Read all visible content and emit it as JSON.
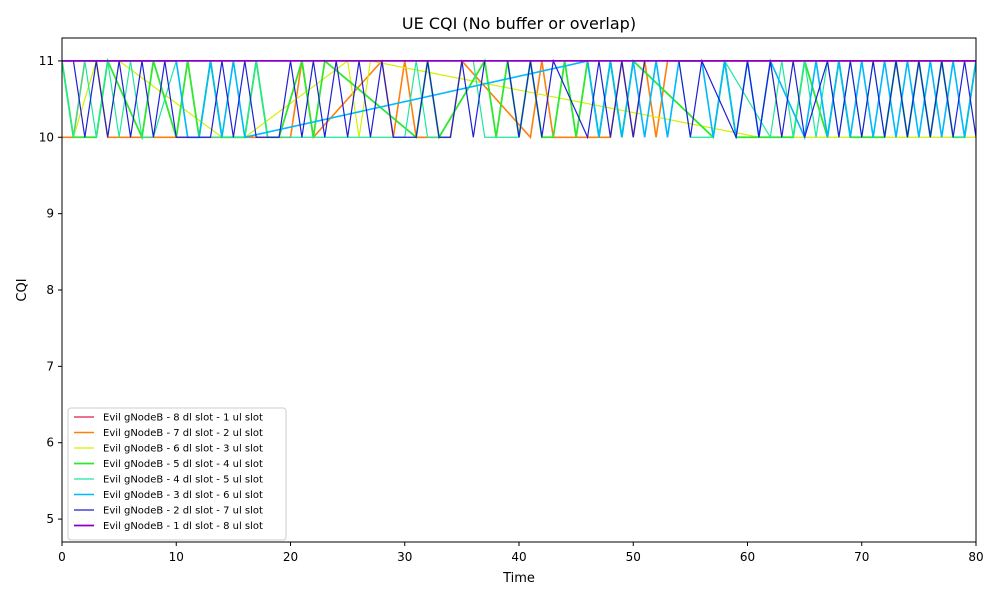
{
  "chart_data": {
    "type": "line",
    "title": "UE CQI (No buffer or overlap)",
    "xlabel": "Time",
    "ylabel": "CQI",
    "xlim": [
      0,
      80
    ],
    "ylim": [
      4.7,
      11.3
    ],
    "xticks": [
      0,
      10,
      20,
      30,
      40,
      50,
      60,
      70,
      80
    ],
    "yticks": [
      5,
      6,
      7,
      8,
      9,
      10,
      11
    ],
    "grid": false,
    "legend_position": "lower-left",
    "series": [
      {
        "name": "Evil gNodeB - 8 dl slot - 1 ul slot",
        "color": "#e6194b",
        "width": 1.2,
        "x": [
          0,
          66,
          67,
          68,
          80
        ],
        "y": [
          11,
          11,
          10,
          11,
          11
        ]
      },
      {
        "name": "Evil gNodeB - 7 dl slot - 2 ul slot",
        "color": "#ff7f0e",
        "width": 1.6,
        "x": [
          0,
          1,
          2,
          3,
          4,
          5,
          20,
          21,
          22,
          28,
          29,
          30,
          31,
          34,
          35,
          41,
          42,
          43,
          48,
          49,
          50,
          51,
          52,
          53,
          80
        ],
        "y": [
          10,
          10,
          11,
          11,
          10,
          10,
          10,
          11,
          10,
          11,
          10,
          11,
          10,
          10,
          11,
          10,
          11,
          10,
          10,
          11,
          10,
          11,
          10,
          11,
          11
        ]
      },
      {
        "name": "Evil gNodeB - 6 dl slot - 3 ul slot",
        "color": "#d4f000",
        "width": 1.2,
        "x": [
          0,
          1,
          3,
          4,
          5,
          14,
          15,
          16,
          25,
          26,
          27,
          61,
          62,
          63,
          75,
          80
        ],
        "y": [
          11,
          10,
          11,
          10,
          11,
          10,
          11,
          10,
          11,
          10,
          11,
          10,
          11,
          10,
          10,
          10
        ]
      },
      {
        "name": "Evil gNodeB - 5 dl slot - 4 ul slot",
        "color": "#2ee82e",
        "width": 1.8,
        "x": [
          0,
          1,
          3,
          4,
          7,
          8,
          10,
          11,
          12,
          13,
          14,
          16,
          17,
          18,
          19,
          21,
          22,
          23,
          31,
          32,
          33,
          37,
          38,
          39,
          40,
          41,
          42,
          43,
          44,
          45,
          46,
          47,
          48,
          49,
          50,
          57,
          58,
          59,
          60,
          64,
          65,
          67,
          68,
          69,
          72,
          73,
          74,
          75,
          76,
          77,
          78,
          79,
          80
        ],
        "y": [
          11,
          10,
          10,
          11,
          10,
          11,
          10,
          11,
          10,
          11,
          10,
          10,
          11,
          10,
          10,
          11,
          10,
          11,
          10,
          11,
          10,
          11,
          10,
          11,
          10,
          11,
          10,
          10,
          11,
          10,
          11,
          10,
          11,
          10,
          11,
          10,
          11,
          10,
          10,
          10,
          11,
          10,
          11,
          10,
          10,
          11,
          10,
          11,
          10,
          11,
          10,
          10,
          11
        ]
      },
      {
        "name": "Evil gNodeB - 4 dl slot - 5 ul slot",
        "color": "#1ee8a0",
        "width": 1.2,
        "x": [
          0,
          1,
          2,
          3,
          4,
          5,
          6,
          7,
          8,
          10,
          11,
          16,
          17,
          18,
          30,
          31,
          32,
          34,
          35,
          36,
          37,
          40,
          41,
          52,
          53,
          54,
          55,
          57,
          58,
          62,
          63,
          64,
          65,
          66,
          67,
          68,
          69,
          70,
          71,
          72,
          73,
          74,
          75,
          76,
          77,
          78,
          79,
          80
        ],
        "y": [
          11,
          10,
          11,
          10,
          11,
          10,
          11,
          10,
          10,
          11,
          10,
          10,
          11,
          10,
          10,
          11,
          10,
          10,
          11,
          11,
          10,
          10,
          11,
          11,
          10,
          11,
          10,
          10,
          11,
          10,
          11,
          10,
          11,
          10,
          11,
          10,
          11,
          10,
          11,
          10,
          11,
          10,
          11,
          10,
          11,
          10,
          10,
          11
        ]
      },
      {
        "name": "Evil gNodeB - 3 dl slot - 6 ul slot",
        "color": "#00b8ff",
        "width": 1.6,
        "x": [
          0,
          10,
          11,
          12,
          13,
          14,
          15,
          16,
          46,
          47,
          48,
          49,
          50,
          51,
          52,
          53,
          54,
          56,
          57,
          58,
          59,
          60,
          61,
          62,
          65,
          66,
          67,
          68,
          69,
          70,
          71,
          72,
          73,
          74,
          75,
          76,
          77,
          78,
          79,
          80
        ],
        "y": [
          11,
          11,
          10,
          10,
          11,
          10,
          11,
          10,
          11,
          10,
          11,
          10,
          11,
          10,
          11,
          10,
          11,
          11,
          10,
          11,
          10,
          11,
          10,
          11,
          10,
          11,
          10,
          11,
          10,
          11,
          10,
          11,
          10,
          11,
          10,
          11,
          10,
          11,
          10,
          11
        ]
      },
      {
        "name": "Evil gNodeB - 2 dl slot - 7 ul slot",
        "color": "#1f1fd6",
        "width": 1.2,
        "x": [
          0,
          1,
          2,
          3,
          4,
          5,
          6,
          7,
          8,
          9,
          10,
          13,
          14,
          15,
          16,
          17,
          19,
          20,
          21,
          22,
          23,
          24,
          25,
          26,
          27,
          28,
          29,
          31,
          32,
          33,
          34,
          35,
          36,
          37,
          39,
          40,
          41,
          42,
          43,
          46,
          47,
          48,
          49,
          50,
          51,
          54,
          55,
          56,
          59,
          60,
          61,
          62,
          63,
          64,
          65,
          67,
          68,
          69,
          70,
          71,
          72,
          73,
          74,
          75,
          76,
          77,
          78,
          79,
          80
        ],
        "y": [
          11,
          11,
          10,
          11,
          10,
          11,
          10,
          11,
          10,
          11,
          10,
          10,
          11,
          10,
          11,
          10,
          10,
          11,
          10,
          11,
          10,
          11,
          10,
          11,
          10,
          11,
          10,
          10,
          11,
          10,
          10,
          11,
          10,
          11,
          11,
          10,
          11,
          10,
          11,
          10,
          11,
          10,
          11,
          10,
          11,
          11,
          10,
          11,
          10,
          11,
          10,
          11,
          10,
          11,
          10,
          11,
          10,
          11,
          10,
          11,
          10,
          11,
          10,
          11,
          10,
          11,
          10,
          11,
          10
        ]
      },
      {
        "name": "Evil gNodeB - 1 dl slot - 8 ul slot",
        "color": "#8a00c8",
        "width": 1.8,
        "x": [
          0,
          80
        ],
        "y": [
          11,
          11
        ]
      }
    ]
  }
}
